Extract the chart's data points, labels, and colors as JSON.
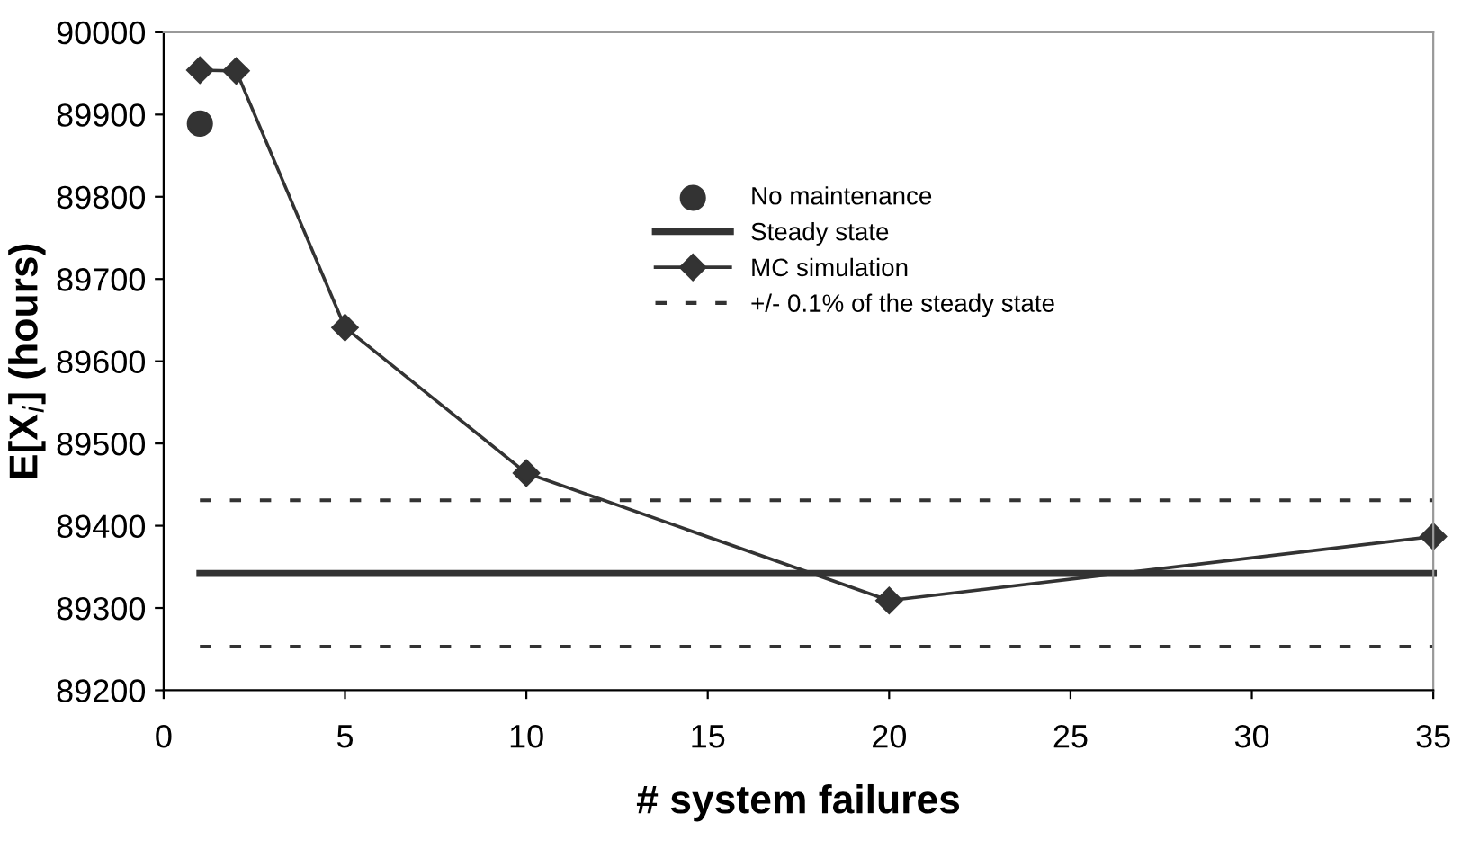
{
  "chart_data": {
    "type": "line",
    "xlabel": "# system failures",
    "ylabel": "E[X$_{i}$] (hours)",
    "xlim": [
      0,
      35
    ],
    "xticks": [
      0,
      5,
      10,
      15,
      20,
      25,
      30,
      35
    ],
    "ylim": [
      89200,
      90000
    ],
    "yticks": [
      89200,
      89300,
      89400,
      89500,
      89600,
      89700,
      89800,
      89900,
      90000
    ],
    "grid": false,
    "legend": "top right",
    "series": [
      {
        "name": "No maintenance",
        "type": "scatter",
        "marker": "circle",
        "color": "#333333",
        "x": [
          1
        ],
        "values": [
          89889
        ]
      },
      {
        "name": "Steady state",
        "marker": "none",
        "line_style": "solid",
        "color": "#333333",
        "x": [
          1,
          35
        ],
        "values": [
          89342,
          89342
        ]
      },
      {
        "name": "MC simulation",
        "marker": "diamond",
        "line_style": "solid",
        "color": "#333333",
        "x": [
          1,
          2,
          5,
          10,
          20,
          35
        ],
        "values": [
          89954,
          89953,
          89641,
          89464,
          89309,
          89387
        ]
      },
      {
        "name": "+/- 0.1% of the steady state",
        "marker": "none",
        "line_style": "dashed",
        "color": "#333333",
        "x": [
          1,
          35
        ],
        "values": [
          89431,
          89431
        ]
      },
      {
        "marker": "none",
        "line_style": "dashed",
        "color": "#333333",
        "x": [
          1,
          35
        ],
        "values": [
          89253,
          89253
        ]
      }
    ]
  }
}
